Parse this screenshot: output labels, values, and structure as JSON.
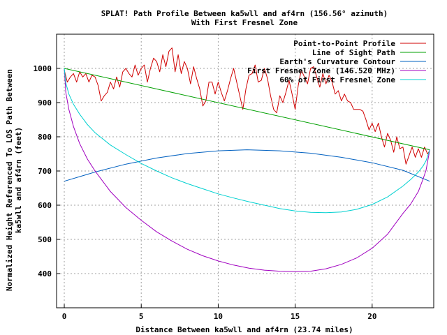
{
  "chart_data": {
    "type": "line",
    "title": "SPLAT! Path Profile Between ka5wll and af4rn (156.56° azimuth)",
    "subtitle": "With First Fresnel Zone",
    "xlabel": "Distance Between ka5wll and af4rn (23.74 miles)",
    "ylabel": "Normalized Height Referenced To LOS Path Between ka5wll and af4rn (feet)",
    "ylabel_lines": [
      "Normalized Height Referenced To LOS Path Between",
      "ka5wll and af4rn (feet)"
    ],
    "xlim": [
      -0.5,
      24
    ],
    "ylim": [
      300,
      1100
    ],
    "xticks": [
      0,
      5,
      10,
      15,
      20
    ],
    "yticks": [
      400,
      500,
      600,
      700,
      800,
      900,
      1000
    ],
    "grid": true,
    "legend_position": "top-right",
    "series": [
      {
        "name": "Point-to-Point Profile",
        "color": "#d00000",
        "x": [
          0,
          0.2,
          0.4,
          0.6,
          0.8,
          1.0,
          1.2,
          1.4,
          1.6,
          1.8,
          2.0,
          2.2,
          2.4,
          2.6,
          2.8,
          3.0,
          3.2,
          3.4,
          3.6,
          3.8,
          4.0,
          4.2,
          4.4,
          4.6,
          4.8,
          5.0,
          5.2,
          5.4,
          5.6,
          5.8,
          6.0,
          6.2,
          6.4,
          6.6,
          6.8,
          7.0,
          7.2,
          7.4,
          7.6,
          7.8,
          8.0,
          8.2,
          8.4,
          8.6,
          8.8,
          9.0,
          9.2,
          9.4,
          9.6,
          9.8,
          10.0,
          10.2,
          10.4,
          10.6,
          10.8,
          11.0,
          11.2,
          11.4,
          11.6,
          11.8,
          12.0,
          12.2,
          12.4,
          12.6,
          12.8,
          13.0,
          13.2,
          13.4,
          13.6,
          13.8,
          14.0,
          14.2,
          14.4,
          14.6,
          14.8,
          15.0,
          15.2,
          15.4,
          15.6,
          15.8,
          16.0,
          16.2,
          16.4,
          16.6,
          16.8,
          17.0,
          17.2,
          17.4,
          17.6,
          17.8,
          18.0,
          18.2,
          18.4,
          18.6,
          18.8,
          19.0,
          19.2,
          19.4,
          19.6,
          19.8,
          20.0,
          20.2,
          20.4,
          20.6,
          20.8,
          21.0,
          21.2,
          21.4,
          21.6,
          21.8,
          22.0,
          22.2,
          22.4,
          22.6,
          22.8,
          23.0,
          23.2,
          23.4,
          23.6,
          23.74
        ],
        "values": [
          995,
          960,
          975,
          985,
          960,
          990,
          975,
          985,
          960,
          980,
          975,
          950,
          905,
          920,
          930,
          960,
          940,
          975,
          945,
          990,
          1000,
          985,
          975,
          1010,
          980,
          1000,
          1010,
          960,
          1000,
          1030,
          1020,
          990,
          1040,
          1005,
          1050,
          1060,
          990,
          1040,
          985,
          1020,
          1000,
          955,
          1005,
          970,
          940,
          890,
          905,
          960,
          960,
          925,
          960,
          930,
          905,
          935,
          970,
          1000,
          960,
          920,
          880,
          940,
          980,
          985,
          1010,
          960,
          965,
          1000,
          970,
          920,
          880,
          870,
          920,
          900,
          930,
          965,
          925,
          880,
          950,
          995,
          975,
          955,
          1000,
          1005,
          975,
          945,
          985,
          955,
          980,
          960,
          925,
          935,
          905,
          925,
          905,
          900,
          880,
          880,
          880,
          875,
          850,
          820,
          840,
          815,
          840,
          800,
          770,
          810,
          790,
          755,
          800,
          765,
          770,
          720,
          745,
          770,
          740,
          765,
          740,
          770,
          750,
          760
        ]
      },
      {
        "name": "Line of Sight Path",
        "color": "#00a000",
        "x": [
          0,
          23.74
        ],
        "values": [
          1000,
          762
        ]
      },
      {
        "name": "Earth's Curvature Contour",
        "color": "#0060c0",
        "x": [
          0,
          2,
          4,
          6,
          8,
          10,
          11.87,
          14,
          16,
          18,
          20,
          22,
          23.74
        ],
        "values": [
          670,
          697,
          720,
          738,
          751,
          759,
          762,
          759,
          752,
          740,
          724,
          702,
          670
        ]
      },
      {
        "name": "First Fresnel Zone (146.520 MHz)",
        "color": "#a000c0",
        "x": [
          0,
          0.1,
          0.3,
          0.6,
          1,
          1.5,
          2,
          3,
          4,
          5,
          6,
          7,
          8,
          9,
          10,
          11,
          12,
          13,
          14,
          15,
          16,
          17,
          18,
          19,
          20,
          21,
          22,
          22.5,
          23,
          23.3,
          23.5,
          23.74
        ],
        "values": [
          1000,
          930,
          880,
          830,
          780,
          735,
          700,
          640,
          593,
          556,
          522,
          495,
          471,
          452,
          437,
          425,
          416,
          410,
          407,
          406,
          407,
          414,
          427,
          446,
          474,
          515,
          576,
          603,
          640,
          676,
          702,
          762
        ]
      },
      {
        "name": "60% of First Fresnel Zone",
        "color": "#00d0d0",
        "x": [
          0,
          0.1,
          0.3,
          0.6,
          1,
          1.5,
          2,
          3,
          4,
          5,
          6,
          7,
          8,
          9,
          10,
          11,
          12,
          13,
          14,
          15,
          16,
          17,
          18,
          19,
          20,
          21,
          22,
          22.5,
          23,
          23.3,
          23.5,
          23.74
        ],
        "values": [
          1000,
          958,
          925,
          895,
          866,
          836,
          812,
          776,
          748,
          722,
          700,
          680,
          663,
          648,
          633,
          621,
          610,
          600,
          590,
          583,
          579,
          578,
          580,
          588,
          602,
          624,
          656,
          675,
          697,
          714,
          730,
          762
        ]
      }
    ]
  }
}
